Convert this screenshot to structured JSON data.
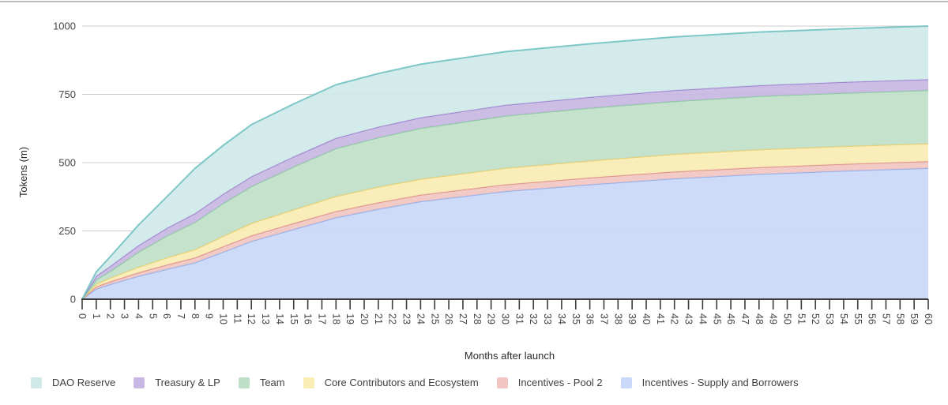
{
  "chart_data": {
    "type": "area",
    "stacked": true,
    "title": "",
    "xlabel": "Months after launch",
    "ylabel": "Tokens (m)",
    "xlim": [
      0,
      60
    ],
    "ylim": [
      0,
      1000
    ],
    "y_ticks": [
      0,
      250,
      500,
      750,
      1000
    ],
    "x_ticks": [
      0,
      1,
      2,
      3,
      4,
      5,
      6,
      7,
      8,
      9,
      10,
      11,
      12,
      13,
      14,
      15,
      16,
      17,
      18,
      19,
      20,
      21,
      22,
      23,
      24,
      25,
      26,
      27,
      28,
      29,
      30,
      31,
      32,
      33,
      34,
      35,
      36,
      37,
      38,
      39,
      40,
      41,
      42,
      43,
      44,
      45,
      46,
      47,
      48,
      49,
      50,
      51,
      52,
      53,
      54,
      55,
      56,
      57,
      58,
      59,
      60
    ],
    "grid": true,
    "legend_position": "bottom",
    "anchor_months": [
      0,
      1,
      2,
      4,
      6,
      8,
      10,
      12,
      15,
      18,
      21,
      24,
      30,
      36,
      42,
      48,
      54,
      60
    ],
    "series": [
      {
        "name": "Incentives - Supply and Borrowers",
        "fill": "#c9d8f8",
        "stroke": "#94b0ec",
        "values": [
          0,
          38,
          55,
          85,
          110,
          134,
          173,
          212,
          256,
          299,
          330,
          358,
          395,
          420,
          442,
          458,
          470,
          480
        ]
      },
      {
        "name": "Incentives - Pool 2",
        "fill": "#f1c5c1",
        "stroke": "#dd918c",
        "values": [
          0,
          8,
          10,
          13,
          16,
          18,
          20,
          21,
          22,
          23,
          24,
          24,
          25,
          25,
          25,
          25,
          25,
          25
        ]
      },
      {
        "name": "Core Contributors and Ecosystem",
        "fill": "#f9ecb4",
        "stroke": "#eccf6e",
        "values": [
          0,
          10,
          13,
          20,
          26,
          30,
          38,
          45,
          50,
          55,
          57,
          58,
          60,
          62,
          64,
          65,
          65,
          65
        ]
      },
      {
        "name": "Team",
        "fill": "#bfe0c8",
        "stroke": "#8bcaa2",
        "values": [
          0,
          15,
          25,
          55,
          80,
          100,
          120,
          135,
          157,
          175,
          181,
          186,
          191,
          193,
          194,
          195,
          195,
          195
        ]
      },
      {
        "name": "Treasury & LP",
        "fill": "#c8b7e2",
        "stroke": "#a083d1",
        "values": [
          0,
          14,
          18,
          24,
          28,
          32,
          34,
          36,
          37,
          38,
          39,
          39,
          40,
          40,
          40,
          40,
          40,
          40
        ]
      },
      {
        "name": "DAO Reserve",
        "fill": "#cfe9e8",
        "stroke": "#7ec7c7",
        "values": [
          0,
          15,
          35,
          75,
          115,
          165,
          178,
          190,
          193,
          195,
          195,
          195,
          195,
          195,
          195,
          195,
          195,
          195
        ]
      }
    ],
    "legend": [
      {
        "label": "DAO Reserve",
        "color": "#cfe9e8"
      },
      {
        "label": "Treasury & LP",
        "color": "#c8b7e2"
      },
      {
        "label": "Team",
        "color": "#bfe0c8"
      },
      {
        "label": "Core Contributors and Ecosystem",
        "color": "#f9ecb4"
      },
      {
        "label": "Incentives - Pool 2",
        "color": "#f1c5c1"
      },
      {
        "label": "Incentives - Supply and Borrowers",
        "color": "#c9d8f8"
      }
    ]
  }
}
